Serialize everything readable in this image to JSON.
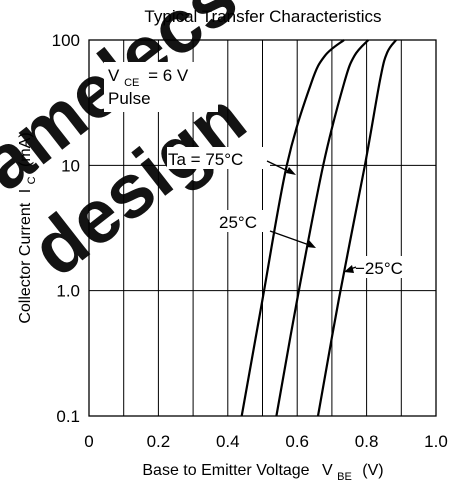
{
  "chart_data": {
    "type": "line",
    "title": "Typical Transfer Characteristics",
    "xlabel": "Base to Emitter Voltage",
    "xlabel_symbol": "V",
    "xlabel_subscript": "BE",
    "xlabel_unit": "(V)",
    "ylabel": "Collector Current",
    "ylabel_symbol": "I",
    "ylabel_subscript": "C",
    "ylabel_unit": "(mA)",
    "xlim": [
      0,
      1.0
    ],
    "ylim": [
      0.1,
      100
    ],
    "y_scale": "log",
    "x_ticks": [
      0,
      0.2,
      0.4,
      0.6,
      0.8,
      1.0
    ],
    "x_tick_labels": [
      "0",
      "0.2",
      "0.4",
      "0.6",
      "0.8",
      "1.0"
    ],
    "y_ticks": [
      0.1,
      1.0,
      10,
      100
    ],
    "y_tick_labels": [
      "0.1",
      "1.0",
      "10",
      "100"
    ],
    "grid": true,
    "conditions": {
      "symbol": "V",
      "subscript": "CE",
      "value": "= 6 V",
      "mode": "Pulse"
    },
    "series": [
      {
        "name": "Ta = 75°C",
        "x": [
          0.44,
          0.5,
          0.57,
          0.64,
          0.68,
          0.735
        ],
        "y": [
          0.1,
          0.85,
          10,
          45,
          75,
          100
        ]
      },
      {
        "name": "25°C",
        "x": [
          0.54,
          0.6,
          0.675,
          0.735,
          0.765,
          0.805
        ],
        "y": [
          0.1,
          0.85,
          10,
          45,
          75,
          100
        ]
      },
      {
        "name": "−25°C",
        "x": [
          0.66,
          0.72,
          0.795,
          0.84,
          0.86,
          0.885
        ],
        "y": [
          0.1,
          0.85,
          10,
          50,
          80,
          100
        ]
      }
    ],
    "watermark": {
      "line1": "www.amelecs",
      "line2": "design",
      "color": "#e8141e"
    }
  }
}
